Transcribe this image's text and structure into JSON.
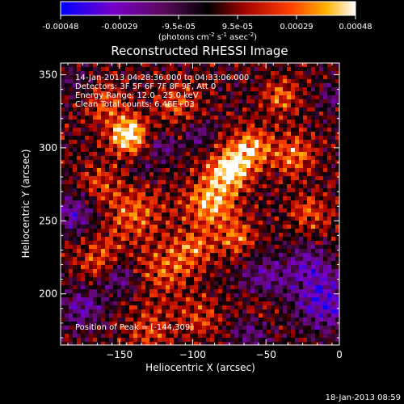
{
  "colorbar": {
    "ticks": [
      "-0.00048",
      "-0.00029",
      "-9.5e-05",
      "9.5e-05",
      "0.00029",
      "0.00048"
    ],
    "units_main": "(photons cm",
    "units_exp1": "-2",
    "units_mid": " s",
    "units_exp2": "-1",
    "units_end1": " asec",
    "units_exp3": "-2",
    "units_close": ")"
  },
  "chart_data": {
    "type": "heatmap",
    "title": "Reconstructed RHESSI Image",
    "xlabel": "Heliocentric X (arcsec)",
    "ylabel": "Heliocentric Y (arcsec)",
    "xlim": [
      -190,
      0
    ],
    "ylim": [
      165,
      358
    ],
    "xticks": [
      -150,
      -100,
      -50,
      0
    ],
    "yticks": [
      200,
      250,
      300,
      350
    ],
    "colorscale": "rainbow-to-fire",
    "clim": [
      -0.00048,
      0.00048
    ],
    "peak": [
      -144,
      309
    ],
    "annotations": [
      "14-Jan-2013 04:28:36.000 to 04:33:06.000",
      "Detectors: 3F 5F 6F 7F 8F 9F, Att 0",
      "Energy Range: 12.0 - 25.0 keV",
      "Clean    Total counts: 6.48E+03",
      "Position of Peak = [-144,309]"
    ]
  },
  "footer": {
    "date": "18-Jan-2013 08:59"
  }
}
